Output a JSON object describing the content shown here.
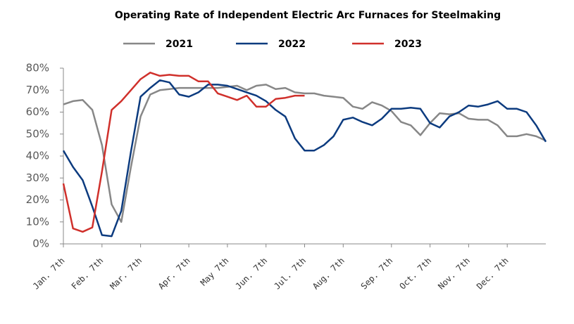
{
  "chart_data": {
    "type": "line",
    "title": "Operating Rate of Independent Electric Arc Furnaces for Steelmaking",
    "categories": [
      "Jan. 7th",
      null,
      null,
      null,
      "Feb. 7th",
      null,
      null,
      null,
      "Mar. 7th",
      null,
      null,
      null,
      null,
      "Apr. 7th",
      null,
      null,
      null,
      "May 7th",
      null,
      null,
      null,
      "Jun. 7th",
      null,
      null,
      null,
      "Jul. 7th",
      null,
      null,
      null,
      "Aug. 7th",
      null,
      null,
      null,
      null,
      "Sep. 7th",
      null,
      null,
      null,
      "Oct. 7th",
      null,
      null,
      null,
      "Nov. 7th",
      null,
      null,
      null,
      "Dec. 7th",
      null,
      null,
      null,
      null
    ],
    "series": [
      {
        "name": "2021",
        "color": "#878787",
        "values": [
          63.5,
          65,
          65.5,
          61,
          45,
          18,
          10,
          35,
          58,
          68,
          70,
          70.5,
          71,
          71,
          71,
          71,
          71,
          71.5,
          72,
          70,
          72,
          72.5,
          70.5,
          71,
          69,
          68.5,
          68.5,
          67.5,
          67,
          66.5,
          62.5,
          61.5,
          64.5,
          63,
          60.5,
          55.5,
          54,
          49.5,
          55,
          59.5,
          59,
          59.5,
          57,
          56.5,
          56.5,
          54,
          49,
          49,
          50,
          49,
          47
        ]
      },
      {
        "name": "2022",
        "color": "#0c3b7f",
        "values": [
          42.5,
          35,
          29,
          17,
          4,
          3.5,
          15,
          42,
          67,
          71,
          74.5,
          73.5,
          68,
          67,
          69,
          72.5,
          72.5,
          72,
          70.5,
          69,
          67.5,
          65,
          61,
          58,
          48,
          42.5,
          42.5,
          45,
          49,
          56.5,
          57.5,
          55.5,
          54,
          57,
          61.5,
          61.5,
          62,
          61.5,
          55,
          53,
          58,
          60,
          63,
          62.5,
          63.5,
          65,
          61.5,
          61.5,
          60,
          54,
          46.5
        ]
      },
      {
        "name": "2023",
        "color": "#d0302b",
        "values": [
          27.5,
          7,
          5.5,
          7.5,
          33,
          61,
          65,
          70,
          75,
          78,
          76.5,
          77,
          76.5,
          76.5,
          74,
          74,
          68.5,
          67,
          65.5,
          67.5,
          62.5,
          62.5,
          66,
          66.5,
          67.5,
          67.5,
          null,
          null,
          null,
          null,
          null,
          null,
          null,
          null,
          null,
          null,
          null,
          null,
          null,
          null,
          null,
          null,
          null,
          null,
          null,
          null,
          null,
          null,
          null,
          null,
          null
        ]
      }
    ],
    "ylim": [
      0,
      80
    ],
    "yticks": [
      {
        "value": 0,
        "label": "0%"
      },
      {
        "value": 10,
        "label": "10%"
      },
      {
        "value": 20,
        "label": "20%"
      },
      {
        "value": 30,
        "label": "30%"
      },
      {
        "value": 40,
        "label": "40%"
      },
      {
        "value": 50,
        "label": "50%"
      },
      {
        "value": 60,
        "label": "60%"
      },
      {
        "value": 70,
        "label": "70%"
      },
      {
        "value": 80,
        "label": "80%"
      }
    ],
    "grid": false
  }
}
